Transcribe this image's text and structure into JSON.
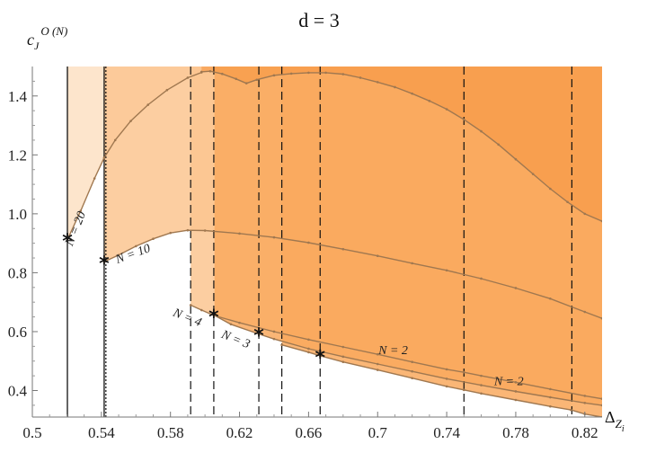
{
  "chart_data": {
    "type": "area",
    "title": "d = 3",
    "ylabel": "c_J^{O(N)}",
    "xlabel": "Δ_{Z_i}",
    "xlim": [
      0.5,
      0.83
    ],
    "ylim": [
      0.31,
      1.5
    ],
    "x_ticks": [
      0.5,
      0.54,
      0.58,
      0.62,
      0.66,
      0.7,
      0.74,
      0.78,
      0.82
    ],
    "x_tick_labels": [
      "0.5",
      "0.54",
      "0.58",
      "0.62",
      "0.66",
      "0.7",
      "0.74",
      "0.78",
      "0.82"
    ],
    "y_ticks": [
      0.4,
      0.6,
      0.8,
      1.0,
      1.2,
      1.4
    ],
    "y_tick_labels": [
      "0.4",
      "0.6",
      "0.8",
      "1.0",
      "1.2",
      "1.4"
    ],
    "colors": {
      "light_fill": "#fde0c3",
      "mid_fill": "#fbc591",
      "deep_fill": "#f9a95e",
      "deepest_fill": "#f79a46",
      "boundary": "#a07850",
      "star": "#111111"
    },
    "regions": [
      {
        "name": "N = 20",
        "x_start": 0.5203,
        "boundary": [
          [
            0.5203,
            0.912
          ],
          [
            0.528,
            1.01
          ],
          [
            0.536,
            1.12
          ],
          [
            0.5416,
            1.19
          ],
          [
            0.548,
            1.25
          ],
          [
            0.557,
            1.315
          ],
          [
            0.567,
            1.37
          ],
          [
            0.578,
            1.42
          ],
          [
            0.59,
            1.462
          ],
          [
            0.598,
            1.48
          ]
        ]
      },
      {
        "name": "N = 10",
        "x_start": 0.5416,
        "boundary": [
          [
            0.5416,
            0.837
          ],
          [
            0.55,
            0.86
          ],
          [
            0.56,
            0.89
          ],
          [
            0.57,
            0.915
          ],
          [
            0.58,
            0.935
          ],
          [
            0.59,
            0.944
          ],
          [
            0.6,
            0.943
          ],
          [
            0.62,
            0.933
          ],
          [
            0.64,
            0.92
          ],
          [
            0.66,
            0.902
          ],
          [
            0.68,
            0.88
          ],
          [
            0.7,
            0.857
          ],
          [
            0.72,
            0.832
          ],
          [
            0.74,
            0.808
          ],
          [
            0.76,
            0.78
          ],
          [
            0.78,
            0.748
          ],
          [
            0.8,
            0.712
          ],
          [
            0.82,
            0.667
          ],
          [
            0.83,
            0.645
          ]
        ]
      },
      {
        "name": "N = 4",
        "x_start": 0.5917,
        "boundary": [
          [
            0.5917,
            0.69
          ],
          [
            0.598,
            0.673
          ],
          [
            0.6051,
            0.655
          ],
          [
            0.62,
            0.63
          ],
          [
            0.64,
            0.6
          ],
          [
            0.66,
            0.573
          ],
          [
            0.68,
            0.548
          ],
          [
            0.7,
            0.523
          ],
          [
            0.72,
            0.497
          ],
          [
            0.74,
            0.472
          ],
          [
            0.75,
            0.462
          ],
          [
            0.76,
            0.45
          ],
          [
            0.78,
            0.428
          ],
          [
            0.8,
            0.405
          ],
          [
            0.82,
            0.382
          ],
          [
            0.83,
            0.372
          ]
        ]
      },
      {
        "name": "N = 3",
        "x_start": 0.6055,
        "boundary": [
          [
            0.6055,
            0.655
          ],
          [
            0.615,
            0.625
          ],
          [
            0.6312,
            0.592
          ],
          [
            0.64,
            0.575
          ],
          [
            0.66,
            0.542
          ],
          [
            0.68,
            0.515
          ],
          [
            0.7,
            0.49
          ],
          [
            0.72,
            0.465
          ],
          [
            0.74,
            0.44
          ],
          [
            0.76,
            0.418
          ],
          [
            0.78,
            0.397
          ],
          [
            0.8,
            0.377
          ],
          [
            0.82,
            0.358
          ],
          [
            0.83,
            0.35
          ]
        ]
      },
      {
        "name": "N = 2",
        "x_start": 0.6445,
        "boundary": [
          [
            0.6445,
            0.555
          ],
          [
            0.66,
            0.53
          ],
          [
            0.6667,
            0.518
          ],
          [
            0.68,
            0.497
          ],
          [
            0.7,
            0.47
          ],
          [
            0.72,
            0.442
          ],
          [
            0.74,
            0.414
          ],
          [
            0.75,
            0.402
          ],
          [
            0.76,
            0.39
          ],
          [
            0.78,
            0.368
          ],
          [
            0.8,
            0.346
          ],
          [
            0.812,
            0.334
          ],
          [
            0.82,
            0.32
          ],
          [
            0.83,
            0.31
          ]
        ]
      }
    ],
    "upper_curve": [
      [
        0.598,
        1.482
      ],
      [
        0.603,
        1.484
      ],
      [
        0.61,
        1.475
      ],
      [
        0.618,
        1.458
      ],
      [
        0.624,
        1.443
      ],
      [
        0.63,
        1.455
      ],
      [
        0.64,
        1.47
      ],
      [
        0.65,
        1.476
      ],
      [
        0.66,
        1.479
      ],
      [
        0.67,
        1.479
      ],
      [
        0.68,
        1.474
      ],
      [
        0.69,
        1.462
      ],
      [
        0.7,
        1.447
      ],
      [
        0.71,
        1.43
      ],
      [
        0.72,
        1.408
      ],
      [
        0.73,
        1.383
      ],
      [
        0.74,
        1.355
      ],
      [
        0.75,
        1.32
      ],
      [
        0.76,
        1.28
      ],
      [
        0.77,
        1.235
      ],
      [
        0.78,
        1.185
      ],
      [
        0.79,
        1.135
      ],
      [
        0.8,
        1.085
      ],
      [
        0.81,
        1.04
      ],
      [
        0.82,
        1.0
      ],
      [
        0.83,
        0.975
      ]
    ],
    "vertical_lines": [
      {
        "x": 0.5203,
        "style": "solid"
      },
      {
        "x": 0.5416,
        "style": "solid"
      },
      {
        "x": 0.5426,
        "style": "dotted"
      },
      {
        "x": 0.5917,
        "style": "dashed"
      },
      {
        "x": 0.6051,
        "style": "dashed"
      },
      {
        "x": 0.6312,
        "style": "dashed"
      },
      {
        "x": 0.6445,
        "style": "dashed"
      },
      {
        "x": 0.6667,
        "style": "dashed"
      },
      {
        "x": 0.75,
        "style": "dashed"
      },
      {
        "x": 0.8125,
        "style": "dashed"
      }
    ],
    "stars": [
      {
        "x": 0.5203,
        "y": 0.912
      },
      {
        "x": 0.5416,
        "y": 0.837
      },
      {
        "x": 0.6051,
        "y": 0.655
      },
      {
        "x": 0.6312,
        "y": 0.592
      },
      {
        "x": 0.6667,
        "y": 0.518
      }
    ],
    "annotations": [
      {
        "text": "N = 20",
        "x": 0.527,
        "y": 0.945,
        "rotate": -68
      },
      {
        "text": "N = 10",
        "x": 0.559,
        "y": 0.852,
        "rotate": -20
      },
      {
        "text": "N = 4",
        "x": 0.589,
        "y": 0.636,
        "rotate": 22
      },
      {
        "text": "N = 3",
        "x": 0.617,
        "y": 0.562,
        "rotate": 22
      },
      {
        "text": "N = 2",
        "x": 0.709,
        "y": 0.523,
        "rotate": 0
      },
      {
        "text": "N = 2",
        "x": 0.776,
        "y": 0.418,
        "rotate": 0
      }
    ]
  }
}
